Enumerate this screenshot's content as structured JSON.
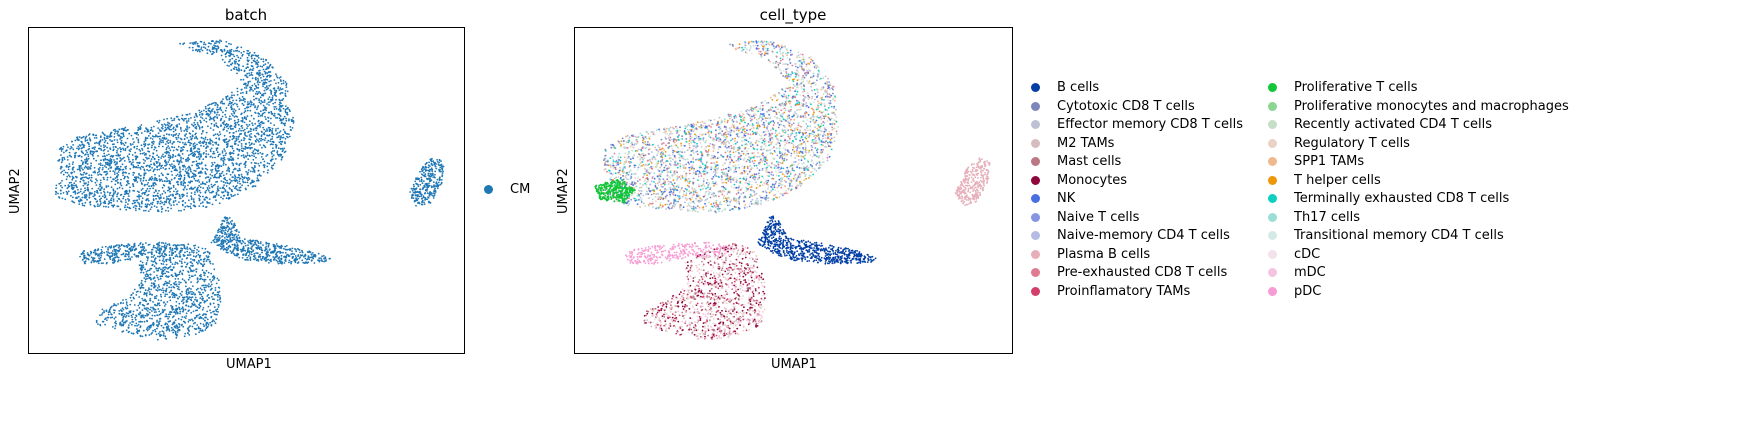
{
  "chart_data": [
    {
      "type": "scatter",
      "title": "batch",
      "xlabel": "UMAP1",
      "ylabel": "UMAP2",
      "grid": false,
      "legend_position": "right",
      "series": [
        {
          "name": "CM",
          "color": "#1f77b4"
        }
      ]
    },
    {
      "type": "scatter",
      "title": "cell_type",
      "xlabel": "UMAP1",
      "ylabel": "UMAP2",
      "grid": false,
      "legend_position": "right",
      "series": [
        {
          "name": "B cells",
          "color": "#023fa5"
        },
        {
          "name": "Cytotoxic CD8 T cells",
          "color": "#7d87b9"
        },
        {
          "name": "Effector memory CD8 T cells",
          "color": "#bec1d4"
        },
        {
          "name": "M2 TAMs",
          "color": "#d6bcc0"
        },
        {
          "name": "Mast cells",
          "color": "#bb7784"
        },
        {
          "name": "Monocytes",
          "color": "#8e063b"
        },
        {
          "name": "NK",
          "color": "#4a6fe3"
        },
        {
          "name": "Naive T cells",
          "color": "#8595e1"
        },
        {
          "name": "Naive-memory CD4 T cells",
          "color": "#b5bbe3"
        },
        {
          "name": "Plasma B cells",
          "color": "#e6afb9"
        },
        {
          "name": "Pre-exhausted CD8 T cells",
          "color": "#e07b91"
        },
        {
          "name": "Proinflamatory TAMs",
          "color": "#d33f6a"
        },
        {
          "name": "Proliferative T cells",
          "color": "#11c638"
        },
        {
          "name": "Proliferative monocytes and macrophages",
          "color": "#8dd593"
        },
        {
          "name": "Recently activated CD4 T cells",
          "color": "#c6dec7"
        },
        {
          "name": "Regulatory T cells",
          "color": "#ead3c6"
        },
        {
          "name": "SPP1 TAMs",
          "color": "#f0b98d"
        },
        {
          "name": "T helper cells",
          "color": "#ef9708"
        },
        {
          "name": "Terminally exhausted CD8 T cells",
          "color": "#0fcfc0"
        },
        {
          "name": "Th17 cells",
          "color": "#9cded6"
        },
        {
          "name": "Transitional memory CD4 T cells",
          "color": "#d5eae7"
        },
        {
          "name": "cDC",
          "color": "#f3e1eb"
        },
        {
          "name": "mDC",
          "color": "#f6c4e1"
        },
        {
          "name": "pDC",
          "color": "#f79cd4"
        }
      ]
    }
  ]
}
